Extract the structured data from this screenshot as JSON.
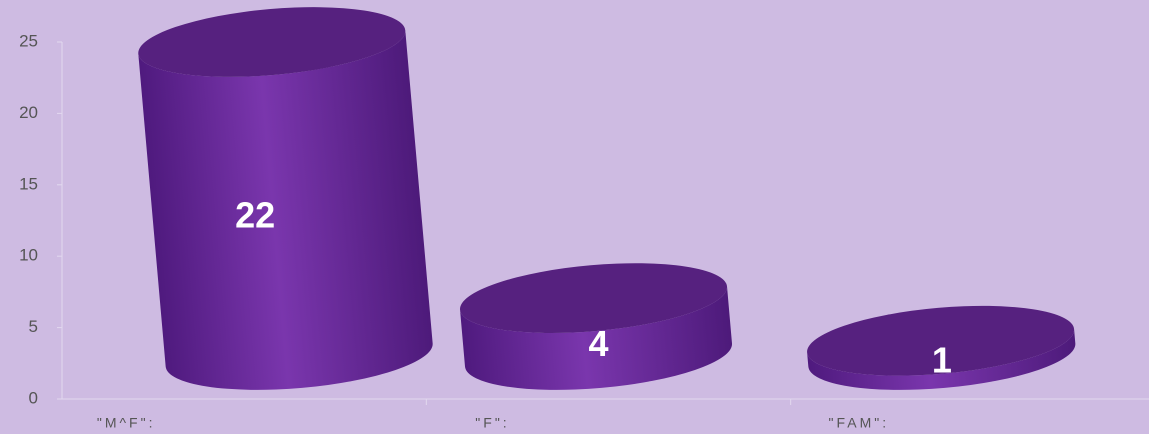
{
  "chart_data": {
    "type": "bar3d",
    "categories": [
      "\"M^F\":",
      "\"F\":",
      "\"FAM\":"
    ],
    "values": [
      22,
      4,
      1
    ],
    "color": "#6a2aa0",
    "ylim": [
      0,
      25
    ],
    "yticks": [
      0,
      5,
      10,
      15,
      20,
      25
    ]
  }
}
